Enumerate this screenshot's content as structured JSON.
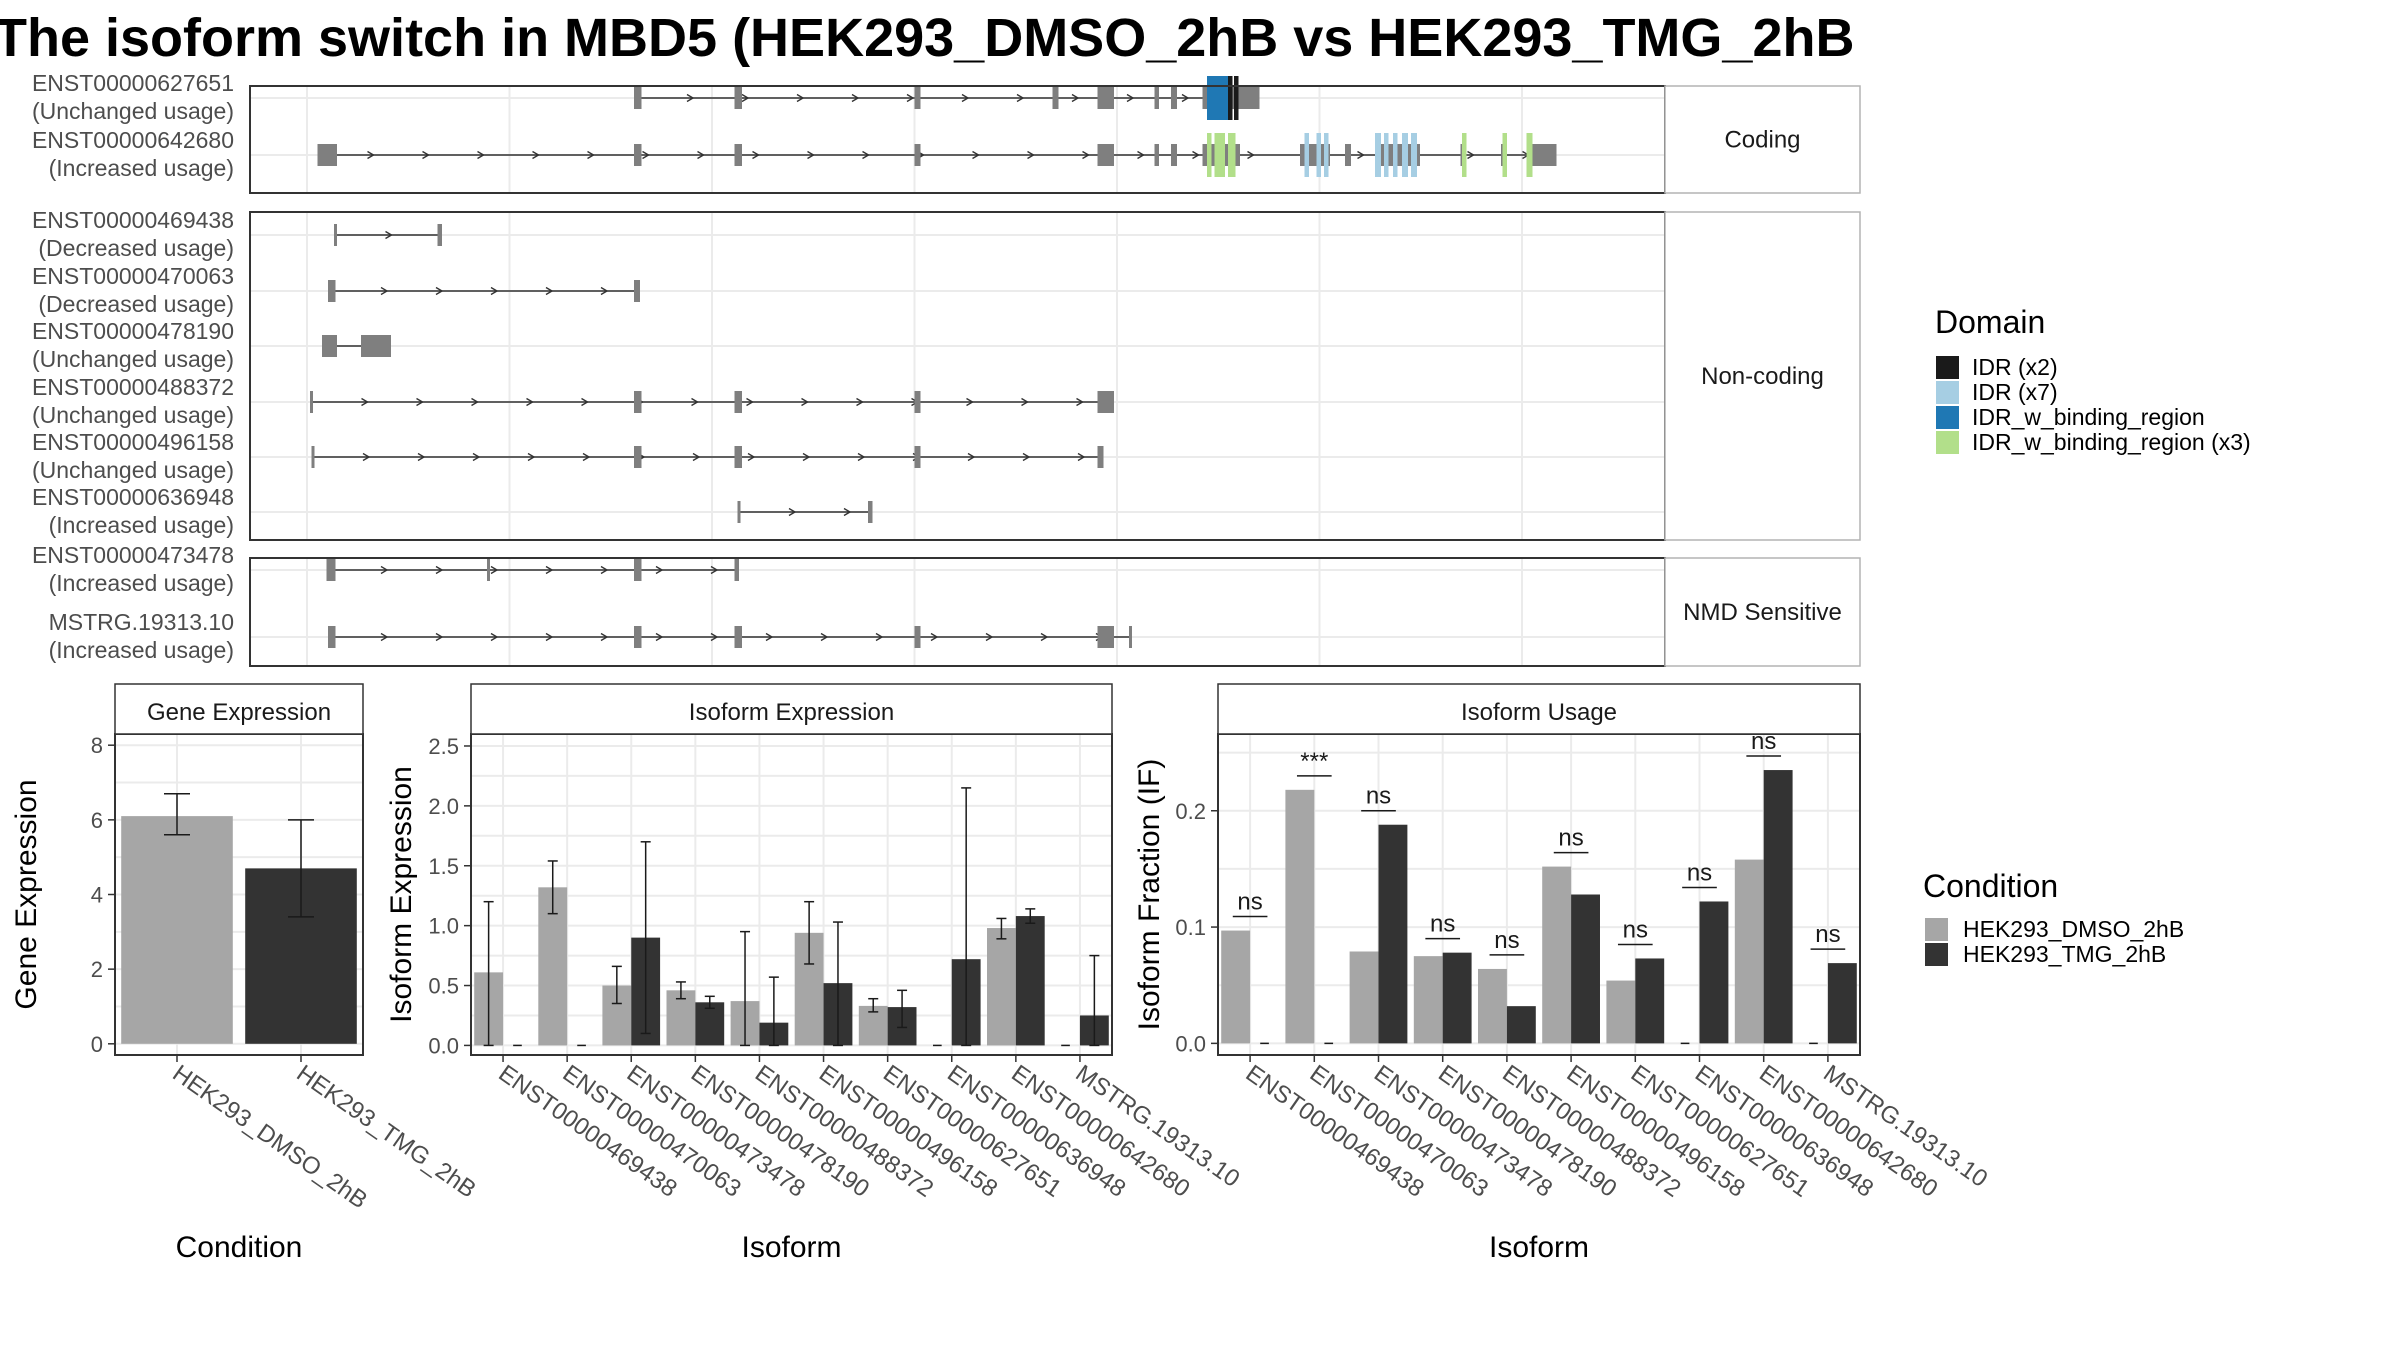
{
  "title": "The isoform switch in MBD5 (HEK293_DMSO_2hB vs HEK293_TMG_2hB",
  "colors": {
    "exon": "#7f7f7f",
    "line": "#333333",
    "grid": "#ebebeb",
    "dmso": "#a6a6a6",
    "tmg": "#333333",
    "idr_x2": "#1a1a1a",
    "idr_x7": "#a6cee3",
    "idr_w_binding_region": "#1f78b4",
    "idr_w_binding_region_x3": "#b2df8a"
  },
  "structure": {
    "x_grid": [
      200,
      335,
      470,
      605,
      740,
      875,
      1010
    ],
    "groups": [
      {
        "name": "Coding",
        "transcripts": [
          {
            "id": "ENST00000627651",
            "usage": "(Unchanged usage)",
            "line": [
              420,
              835
            ],
            "exons": [
              [
                418,
                423,
                "s"
              ],
              [
                485,
                490,
                "s"
              ],
              [
                605,
                609,
                "s"
              ],
              [
                697,
                701,
                "s"
              ],
              [
                727,
                738,
                "b"
              ],
              [
                765,
                768,
                "s"
              ],
              [
                776,
                780,
                "s"
              ],
              [
                797,
                821,
                "b"
              ],
              [
                821,
                835,
                "b"
              ]
            ],
            "domains": [
              [
                800,
                814,
                "idr_w_binding_region"
              ],
              [
                814,
                817,
                "idr_x2"
              ],
              [
                818,
                821,
                "idr_x2"
              ]
            ]
          },
          {
            "id": "ENST00000642680",
            "usage": "(Increased usage)",
            "line": [
              207,
              1033
            ],
            "exons": [
              [
                207,
                220,
                "b"
              ],
              [
                418,
                423,
                "s"
              ],
              [
                485,
                490,
                "s"
              ],
              [
                605,
                609,
                "s"
              ],
              [
                727,
                738,
                "b"
              ],
              [
                765,
                768,
                "s"
              ],
              [
                776,
                780,
                "s"
              ],
              [
                797,
                822,
                "b"
              ],
              [
                862,
                882,
                "b"
              ],
              [
                892,
                896,
                "s"
              ],
              [
                912,
                942,
                "b"
              ],
              [
                969,
                973,
                "s"
              ],
              [
                996,
                1000,
                "s"
              ],
              [
                1013,
                1017,
                "s"
              ],
              [
                1017,
                1033,
                "b"
              ]
            ],
            "domains": [
              [
                800,
                803,
                "idr_w_binding_region_x3"
              ],
              [
                805,
                812,
                "idr_w_binding_region_x3"
              ],
              [
                814,
                819,
                "idr_w_binding_region_x3"
              ],
              [
                865,
                868,
                "idr_x7"
              ],
              [
                873,
                876,
                "idr_x7"
              ],
              [
                878,
                881,
                "idr_x7"
              ],
              [
                912,
                916,
                "idr_x7"
              ],
              [
                918,
                921,
                "idr_x7"
              ],
              [
                924,
                927,
                "idr_x7"
              ],
              [
                930,
                934,
                "idr_x7"
              ],
              [
                936,
                940,
                "idr_x7"
              ],
              [
                970,
                973,
                "idr_w_binding_region_x3"
              ],
              [
                997,
                1000,
                "idr_w_binding_region_x3"
              ],
              [
                1013,
                1017,
                "idr_w_binding_region_x3"
              ]
            ]
          }
        ]
      },
      {
        "name": "Non-coding",
        "transcripts": [
          {
            "id": "ENST00000469438",
            "usage": "(Decreased usage)",
            "line": [
              219,
              289
            ],
            "exons": [
              [
                218,
                220,
                "s"
              ],
              [
                287,
                290,
                "s"
              ]
            ],
            "domains": []
          },
          {
            "id": "ENST00000470063",
            "usage": "(Decreased usage)",
            "line": [
              216,
              420
            ],
            "exons": [
              [
                214,
                219,
                "s"
              ],
              [
                418,
                422,
                "b"
              ]
            ],
            "domains": []
          },
          {
            "id": "ENST00000478190",
            "usage": "(Unchanged usage)",
            "line": [
              215,
              250
            ],
            "exons": [
              [
                210,
                220,
                "b"
              ],
              [
                236,
                239,
                "s"
              ],
              [
                239,
                256,
                "b"
              ]
            ],
            "domains": []
          },
          {
            "id": "ENST00000488372",
            "usage": "(Unchanged usage)",
            "line": [
              203,
              735
            ],
            "exons": [
              [
                202,
                204,
                "s"
              ],
              [
                418,
                423,
                "s"
              ],
              [
                485,
                490,
                "s"
              ],
              [
                605,
                609,
                "s"
              ],
              [
                727,
                738,
                "b"
              ]
            ],
            "domains": []
          },
          {
            "id": "ENST00000496158",
            "usage": "(Unchanged usage)",
            "line": [
              204,
              730
            ],
            "exons": [
              [
                203,
                205,
                "s"
              ],
              [
                418,
                423,
                "s"
              ],
              [
                485,
                490,
                "s"
              ],
              [
                605,
                609,
                "s"
              ],
              [
                727,
                731,
                "s"
              ]
            ],
            "domains": []
          },
          {
            "id": "ENST00000636948",
            "usage": "(Increased usage)",
            "line": [
              488,
              576
            ],
            "exons": [
              [
                487,
                489,
                "s"
              ],
              [
                574,
                577,
                "s"
              ]
            ],
            "domains": []
          }
        ]
      },
      {
        "name": "NMD Sensitive",
        "transcripts": [
          {
            "id": "ENST00000473478",
            "usage": "(Increased usage)",
            "line": [
              216,
              487
            ],
            "exons": [
              [
                213,
                219,
                "s"
              ],
              [
                320,
                322,
                "s"
              ],
              [
                418,
                423,
                "s"
              ],
              [
                485,
                488,
                "s"
              ]
            ],
            "domains": []
          },
          {
            "id": "MSTRG.19313.10",
            "usage": "(Increased usage)",
            "line": [
              216,
              750
            ],
            "exons": [
              [
                214,
                219,
                "s"
              ],
              [
                418,
                423,
                "s"
              ],
              [
                485,
                490,
                "s"
              ],
              [
                605,
                609,
                "s"
              ],
              [
                727,
                738,
                "b"
              ],
              [
                748,
                750,
                "s"
              ]
            ],
            "domains": []
          }
        ]
      }
    ]
  },
  "domain_legend": {
    "title": "Domain",
    "items": [
      {
        "label": "IDR (x2)",
        "color_key": "idr_x2"
      },
      {
        "label": "IDR (x7)",
        "color_key": "idr_x7"
      },
      {
        "label": "IDR_w_binding_region",
        "color_key": "idr_w_binding_region"
      },
      {
        "label": "IDR_w_binding_region (x3)",
        "color_key": "idr_w_binding_region_x3"
      }
    ]
  },
  "condition_legend": {
    "title": "Condition",
    "items": [
      {
        "label": "HEK293_DMSO_2hB",
        "color_key": "dmso"
      },
      {
        "label": "HEK293_TMG_2hB",
        "color_key": "tmg"
      }
    ]
  },
  "chart_data": [
    {
      "type": "bar",
      "title": "Gene Expression",
      "xlabel": "Condition",
      "ylabel": "Gene Expression",
      "ylim": [
        -0.3,
        8.3
      ],
      "yticks": [
        0,
        2,
        4,
        6,
        8
      ],
      "categories": [
        "HEK293_DMSO_2hB",
        "HEK293_TMG_2hB"
      ],
      "values": [
        6.1,
        4.7
      ],
      "errors": [
        [
          5.6,
          6.7
        ],
        [
          3.4,
          6.0
        ]
      ]
    },
    {
      "type": "bar",
      "title": "Isoform Expression",
      "xlabel": "Isoform",
      "ylabel": "Isoform Expression",
      "ylim": [
        -0.08,
        2.6
      ],
      "yticks": [
        "0.0",
        "0.5",
        "1.0",
        "1.5",
        "2.0",
        "2.5"
      ],
      "categories": [
        "ENST00000469438",
        "ENST00000470063",
        "ENST00000473478",
        "ENST00000478190",
        "ENST00000488372",
        "ENST00000496158",
        "ENST00000627651",
        "ENST00000636948",
        "ENST00000642680",
        "MSTRG.19313.10"
      ],
      "series": [
        {
          "name": "HEK293_DMSO_2hB",
          "values": [
            0.61,
            1.32,
            0.5,
            0.46,
            0.37,
            0.94,
            0.33,
            0.0,
            0.98,
            0.0
          ],
          "errors": [
            [
              0.0,
              1.2
            ],
            [
              1.1,
              1.54
            ],
            [
              0.35,
              0.66
            ],
            [
              0.39,
              0.53
            ],
            [
              0.0,
              0.95
            ],
            [
              0.68,
              1.2
            ],
            [
              0.28,
              0.39
            ],
            [
              0.0,
              0.0
            ],
            [
              0.89,
              1.06
            ],
            [
              0.0,
              0.0
            ]
          ]
        },
        {
          "name": "HEK293_TMG_2hB",
          "values": [
            0.0,
            0.0,
            0.9,
            0.36,
            0.19,
            0.52,
            0.32,
            0.72,
            1.08,
            0.25
          ],
          "errors": [
            [
              0.0,
              0.0
            ],
            [
              0.0,
              0.0
            ],
            [
              0.1,
              1.7
            ],
            [
              0.31,
              0.41
            ],
            [
              0.0,
              0.57
            ],
            [
              0.0,
              1.03
            ],
            [
              0.15,
              0.46
            ],
            [
              0.0,
              2.15
            ],
            [
              1.02,
              1.14
            ],
            [
              0.0,
              0.75
            ]
          ]
        }
      ]
    },
    {
      "type": "bar",
      "title": "Isoform Usage",
      "xlabel": "Isoform",
      "ylabel": "Isoform Fraction (IF)",
      "ylim": [
        -0.01,
        0.266
      ],
      "yticks": [
        "0.0",
        "0.1",
        "0.2"
      ],
      "categories": [
        "ENST00000469438",
        "ENST00000470063",
        "ENST00000473478",
        "ENST00000478190",
        "ENST00000488372",
        "ENST00000496158",
        "ENST00000627651",
        "ENST00000636948",
        "ENST00000642680",
        "MSTRG.19313.10"
      ],
      "series": [
        {
          "name": "HEK293_DMSO_2hB",
          "values": [
            0.097,
            0.218,
            0.079,
            0.075,
            0.064,
            0.152,
            0.054,
            0.0,
            0.158,
            0.0
          ]
        },
        {
          "name": "HEK293_TMG_2hB",
          "values": [
            0.0,
            0.0,
            0.188,
            0.078,
            0.032,
            0.128,
            0.073,
            0.122,
            0.235,
            0.069
          ]
        }
      ],
      "significance": [
        "ns",
        "***",
        "ns",
        "ns",
        "ns",
        "ns",
        "ns",
        "ns",
        "ns",
        "ns"
      ]
    }
  ]
}
